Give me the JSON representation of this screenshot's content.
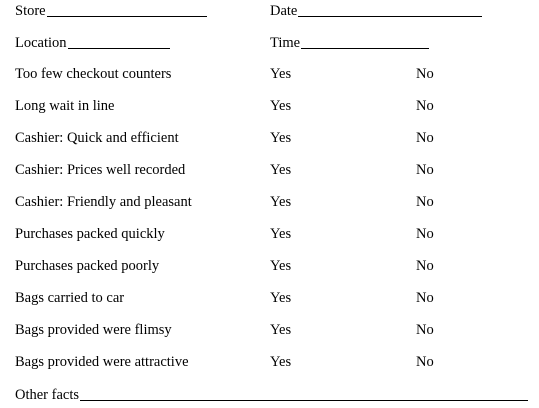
{
  "header": {
    "store_label": "Store",
    "date_label": "Date",
    "location_label": "Location",
    "time_label": "Time"
  },
  "checklist": {
    "yes_label": "Yes",
    "no_label": "No",
    "items": [
      {
        "label": "Too few checkout counters"
      },
      {
        "label": "Long wait in line"
      },
      {
        "label": "Cashier: Quick and efficient"
      },
      {
        "label": "Cashier: Prices well recorded"
      },
      {
        "label": "Cashier: Friendly and pleasant"
      },
      {
        "label": "Purchases packed quickly"
      },
      {
        "label": "Purchases packed poorly"
      },
      {
        "label": "Bags carried to car"
      },
      {
        "label": "Bags provided were flimsy"
      },
      {
        "label": "Bags provided were attractive"
      }
    ]
  },
  "footer": {
    "other_facts_label": "Other facts"
  }
}
